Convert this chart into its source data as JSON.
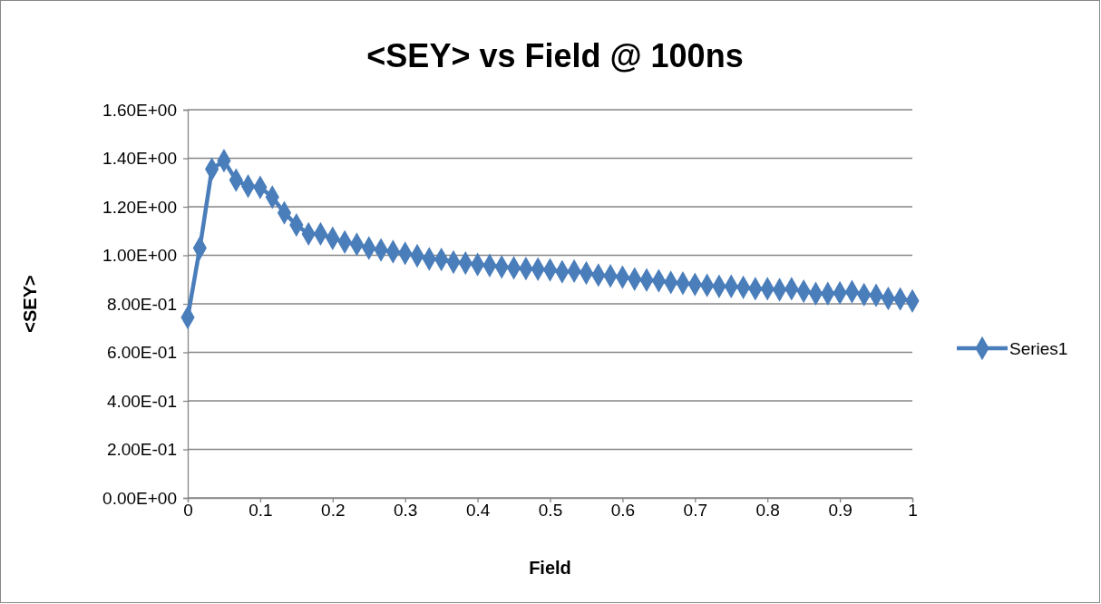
{
  "chart_data": {
    "type": "line",
    "title": "<SEY> vs Field @ 100ns",
    "xlabel": "Field",
    "ylabel": "<SEY>",
    "x": [
      0,
      0.0167,
      0.0333,
      0.05,
      0.0667,
      0.0833,
      0.1,
      0.1167,
      0.1333,
      0.15,
      0.1667,
      0.1833,
      0.2,
      0.2167,
      0.2333,
      0.25,
      0.2667,
      0.2833,
      0.3,
      0.3167,
      0.3333,
      0.35,
      0.3667,
      0.3833,
      0.4,
      0.4167,
      0.4333,
      0.45,
      0.4667,
      0.4833,
      0.5,
      0.5167,
      0.5333,
      0.55,
      0.5667,
      0.5833,
      0.6,
      0.6167,
      0.6333,
      0.65,
      0.6667,
      0.6833,
      0.7,
      0.7167,
      0.7333,
      0.75,
      0.7667,
      0.7833,
      0.8,
      0.8167,
      0.8333,
      0.85,
      0.8667,
      0.8833,
      0.9,
      0.9167,
      0.9333,
      0.95,
      0.9667,
      0.9833,
      1
    ],
    "series": [
      {
        "name": "Series1",
        "color": "#4a7ebb",
        "values": [
          0.744,
          1.03,
          1.355,
          1.39,
          1.31,
          1.285,
          1.28,
          1.24,
          1.175,
          1.125,
          1.088,
          1.088,
          1.07,
          1.055,
          1.045,
          1.03,
          1.022,
          1.015,
          1.008,
          0.998,
          0.985,
          0.983,
          0.972,
          0.968,
          0.962,
          0.958,
          0.952,
          0.948,
          0.945,
          0.943,
          0.94,
          0.932,
          0.935,
          0.927,
          0.918,
          0.915,
          0.91,
          0.902,
          0.898,
          0.895,
          0.888,
          0.885,
          0.88,
          0.876,
          0.872,
          0.872,
          0.868,
          0.862,
          0.862,
          0.858,
          0.862,
          0.852,
          0.842,
          0.842,
          0.845,
          0.85,
          0.838,
          0.835,
          0.822,
          0.82,
          0.812
        ]
      }
    ],
    "xlim": [
      0,
      1
    ],
    "xticks": [
      0,
      0.1,
      0.2,
      0.3,
      0.4,
      0.5,
      0.6,
      0.7,
      0.8,
      0.9,
      1
    ],
    "ylim": [
      0,
      1.6
    ],
    "yticks": [
      {
        "value": 0,
        "label": "0.00E+00"
      },
      {
        "value": 0.2,
        "label": "2.00E-01"
      },
      {
        "value": 0.4,
        "label": "4.00E-01"
      },
      {
        "value": 0.6,
        "label": "6.00E-01"
      },
      {
        "value": 0.8,
        "label": "8.00E-01"
      },
      {
        "value": 1,
        "label": "1.00E+00"
      },
      {
        "value": 1.2,
        "label": "1.20E+00"
      },
      {
        "value": 1.4,
        "label": "1.40E+00"
      },
      {
        "value": 1.6,
        "label": "1.60E+00"
      }
    ],
    "grid": "y",
    "legend": "right",
    "marker": "diamond",
    "line_style": "solid"
  }
}
